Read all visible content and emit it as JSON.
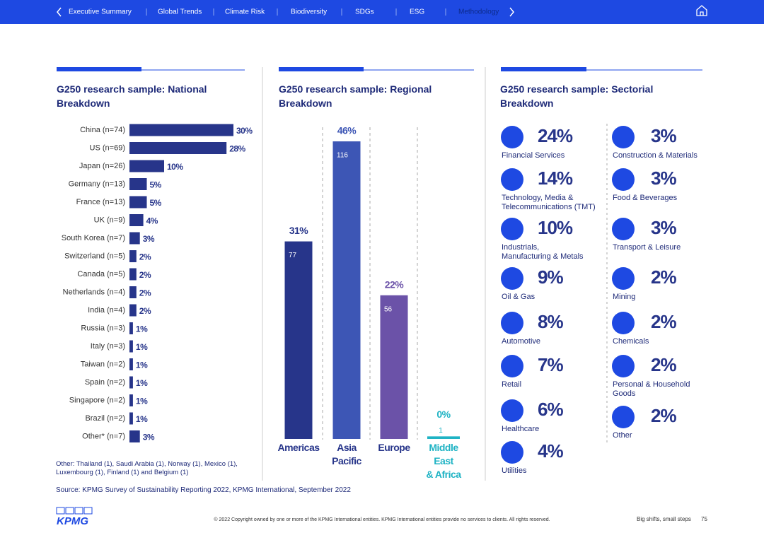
{
  "nav": {
    "items": [
      "Executive Summary",
      "Global Trends",
      "Climate Risk",
      "Biodiversity",
      "SDGs",
      "ESG",
      "Methodology"
    ],
    "active": 6
  },
  "chart_data": [
    {
      "type": "hbar",
      "title": "G250 research sample: National Breakdown",
      "categories": [
        "China (n=74)",
        "US (n=69)",
        "Japan (n=26)",
        "Germany (n=13)",
        "France (n=13)",
        "UK (n=9)",
        "South Korea (n=7)",
        "Switzerland (n=5)",
        "Canada (n=5)",
        "Netherlands (n=4)",
        "India (n=4)",
        "Russia (n=3)",
        "Italy (n=3)",
        "Taiwan (n=2)",
        "Spain (n=2)",
        "Singapore (n=2)",
        "Brazil (n=2)",
        "Other* (n=7)"
      ],
      "values": [
        30,
        28,
        10,
        5,
        5,
        4,
        3,
        2,
        2,
        2,
        2,
        1,
        1,
        1,
        1,
        1,
        1,
        3
      ],
      "value_labels": [
        "30%",
        "28%",
        "10%",
        "5%",
        "5%",
        "4%",
        "3%",
        "2%",
        "2%",
        "2%",
        "2%",
        "1%",
        "1%",
        "1%",
        "1%",
        "1%",
        "1%",
        "3%"
      ],
      "color": "#27358a"
    },
    {
      "type": "bar",
      "title": "G250 research sample: Regional Breakdown",
      "categories": [
        "Americas",
        "Asia\nPacific",
        "Europe",
        "Middle\nEast\n& Africa"
      ],
      "values": [
        77,
        116,
        56,
        1
      ],
      "shares": [
        "31%",
        "46%",
        "22%",
        "0%"
      ],
      "colors": [
        "#27358a",
        "#3d56b5",
        "#6b52a8",
        "#1fb3c4"
      ]
    }
  ],
  "sectors": {
    "title": "G250 research sample: Sectorial Breakdown",
    "columns": [
      [
        {
          "share": "24%",
          "name": "Financial Services"
        },
        {
          "share": "14%",
          "name": "Technology, Media &\nTelecommunications (TMT)"
        },
        {
          "share": "10%",
          "name": "Industrials,\nManufacturing & Metals"
        },
        {
          "share": "9%",
          "name": "Oil & Gas"
        },
        {
          "share": "8%",
          "name": "Automotive"
        },
        {
          "share": "7%",
          "name": "Retail"
        },
        {
          "share": "6%",
          "name": "Healthcare"
        },
        {
          "share": "4%",
          "name": "Utilities"
        }
      ],
      [
        {
          "share": "3%",
          "name": "Construction & Materials"
        },
        {
          "share": "3%",
          "name": "Food & Beverages"
        },
        {
          "share": "3%",
          "name": "Transport & Leisure"
        },
        {
          "share": "2%",
          "name": "Mining"
        },
        {
          "share": "2%",
          "name": "Chemicals"
        },
        {
          "share": "2%",
          "name": "Personal & Household\nGoods"
        },
        {
          "share": "2%",
          "name": "Other"
        }
      ]
    ]
  },
  "note": "Other: Thailand (1), Saudi Arabia (1), Norway (1), Mexico (1), Luxembourg (1), Finland (1) and Belgium (1)",
  "source": "Source: KPMG Survey of Sustainability Reporting 2022, KPMG International, September 2022",
  "footer": {
    "logo": "KPMG",
    "copyright": "© 2022 Copyright owned by one or more of the KPMG International entities. KPMG International entities provide no services to clients. All rights reserved.",
    "tagline": "Big shifts, small steps",
    "page": 75
  }
}
